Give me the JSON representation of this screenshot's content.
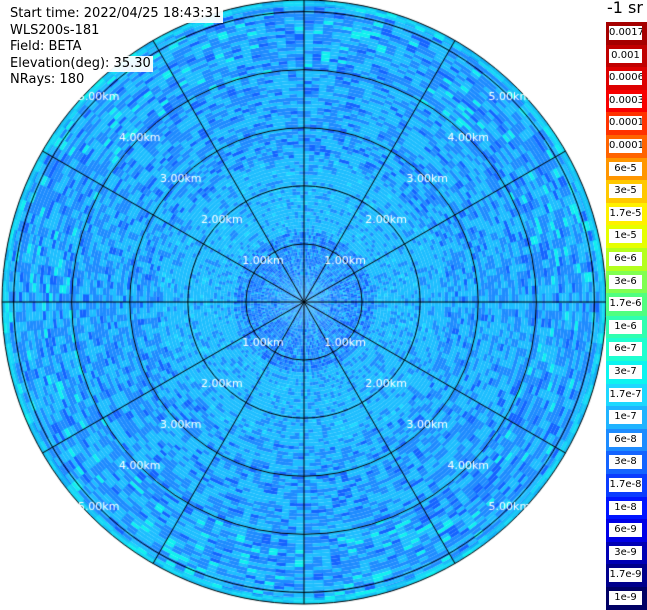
{
  "header": {
    "start_time": "Start time: 2022/04/25 18:43:31",
    "instrument": "WLS200s-181",
    "field": "Field: BETA",
    "elevation": "Elevation(deg): 35.30",
    "nrays": "NRays: 180"
  },
  "colorbar": {
    "unit_label": "-1 sr",
    "entries": [
      {
        "label": "0.0017",
        "color": "#a50000"
      },
      {
        "label": "0.001",
        "color": "#c00000"
      },
      {
        "label": "0.0006",
        "color": "#dd0000"
      },
      {
        "label": "0.0003",
        "color": "#f80000"
      },
      {
        "label": "0.00017",
        "color": "#ff3200"
      },
      {
        "label": "0.0001",
        "color": "#ff6400"
      },
      {
        "label": "6e-5",
        "color": "#ff9600"
      },
      {
        "label": "3e-5",
        "color": "#ffc800"
      },
      {
        "label": "1.7e-5",
        "color": "#fff000"
      },
      {
        "label": "1e-5",
        "color": "#e6ff00"
      },
      {
        "label": "6e-6",
        "color": "#b4ff1e"
      },
      {
        "label": "3e-6",
        "color": "#80ff50"
      },
      {
        "label": "1.7e-6",
        "color": "#50ff80"
      },
      {
        "label": "1e-6",
        "color": "#30ffb0"
      },
      {
        "label": "6e-7",
        "color": "#1effd0"
      },
      {
        "label": "3e-7",
        "color": "#0cf4f0"
      },
      {
        "label": "1.7e-7",
        "color": "#1ed8ff"
      },
      {
        "label": "1e-7",
        "color": "#20b4ff"
      },
      {
        "label": "6e-8",
        "color": "#1e8cff"
      },
      {
        "label": "3e-8",
        "color": "#1464ff"
      },
      {
        "label": "1.7e-8",
        "color": "#0a3cff"
      },
      {
        "label": "1e-8",
        "color": "#0014ff"
      },
      {
        "label": "6e-9",
        "color": "#0000e6"
      },
      {
        "label": "3e-9",
        "color": "#0000b4"
      },
      {
        "label": "1.7e-9",
        "color": "#00008c"
      },
      {
        "label": "1e-9",
        "color": "#000064"
      }
    ]
  },
  "plot": {
    "max_range_km": 5.2,
    "range_rings_km": [
      1,
      2,
      3,
      4,
      5
    ],
    "ring_labels": [
      "1.00km",
      "2.00km",
      "3.00km",
      "4.00km",
      "5.00km"
    ],
    "spoke_angles_deg": [
      0,
      30,
      60,
      90,
      120,
      150,
      180,
      210,
      240,
      270,
      300,
      330
    ],
    "palette": {
      "light": "#1ebeff",
      "mid": "#1e8cff",
      "dark": "#1464ff",
      "cyan": "#10f0f0",
      "edge": "#1ed8ff"
    }
  }
}
